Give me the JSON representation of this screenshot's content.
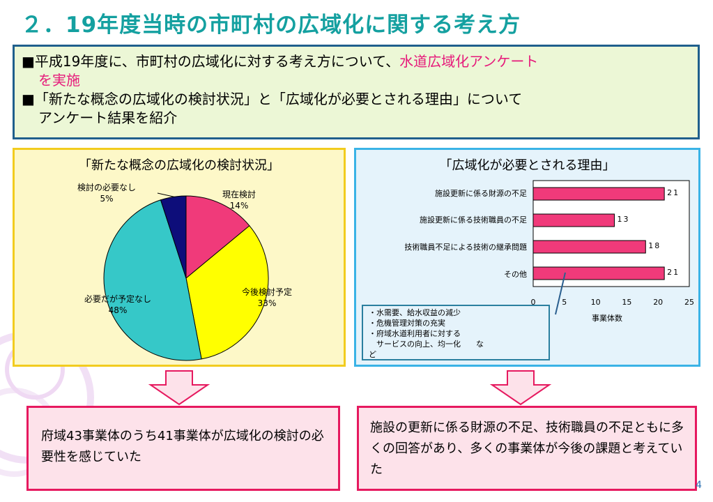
{
  "slide": {
    "title": "２．19年度当時の市町村の広域化に関する考え方",
    "page_number": "4"
  },
  "summary": {
    "bullet1_prefix": "■平成19年度に、市町村の広域化に対する考え方について、",
    "bullet1_highlight": "水道広域化アンケート",
    "bullet1_highlight_cont": "を実施",
    "bullet2_line1": "■「新たな概念の広域化の検討状況」と「広域化が必要とされる理由」について",
    "bullet2_line2": "アンケート結果を紹介"
  },
  "chart_data": [
    {
      "type": "pie",
      "title": "「新たな概念の広域化の検討状況」",
      "slices": [
        {
          "label": "現在検討",
          "value": 14,
          "value_text": "14%",
          "color": "#f03a7a"
        },
        {
          "label": "今後検討予定",
          "value": 33,
          "value_text": "33%",
          "color": "#ffff00"
        },
        {
          "label": "必要だが予定なし",
          "value": 48,
          "value_text": "48%",
          "color": "#36c8c8"
        },
        {
          "label": "検討の必要なし",
          "value": 5,
          "value_text": "5%",
          "color": "#0d0d7a"
        }
      ]
    },
    {
      "type": "bar",
      "orientation": "horizontal",
      "title": "「広域化が必要とされる理由」",
      "categories": [
        "施設更新に係る財源の不足",
        "施設更新に係る技術職員の不足",
        "技術職員不足による技術の継承問題",
        "その他"
      ],
      "values": [
        21,
        13,
        18,
        21
      ],
      "xlabel": "事業体数",
      "xlim": [
        0,
        25
      ],
      "xticks": [
        "0",
        "5",
        "10",
        "15",
        "20",
        "25"
      ],
      "bar_color": "#f03a7a"
    }
  ],
  "other_reasons_note": {
    "items": [
      "・水需要、給水収益の減少",
      "・危機管理対策の充実",
      "・府域水道利用者に対する",
      "　サービスの向上、均一化　　な",
      "ど"
    ]
  },
  "conclusions": {
    "left": "府域43事業体のうち41事業体が広域化の検討の必要性を感じていた",
    "right": "施設の更新に係る財源の不足、技術職員の不足ともに多くの回答があり、多くの事業体が今後の課題と考えていた"
  },
  "colors": {
    "title": "#14a0a0",
    "summary_bg": "#ecf7d6",
    "summary_border": "#1f5f8c",
    "highlight": "#e6197a",
    "left_panel_bg": "#fdf8c8",
    "left_panel_border": "#f2cc1f",
    "right_panel_bg": "#e5f3fb",
    "right_panel_border": "#3ab3e6",
    "conclusion_bg": "#fde2ea",
    "conclusion_border": "#e6195f"
  }
}
